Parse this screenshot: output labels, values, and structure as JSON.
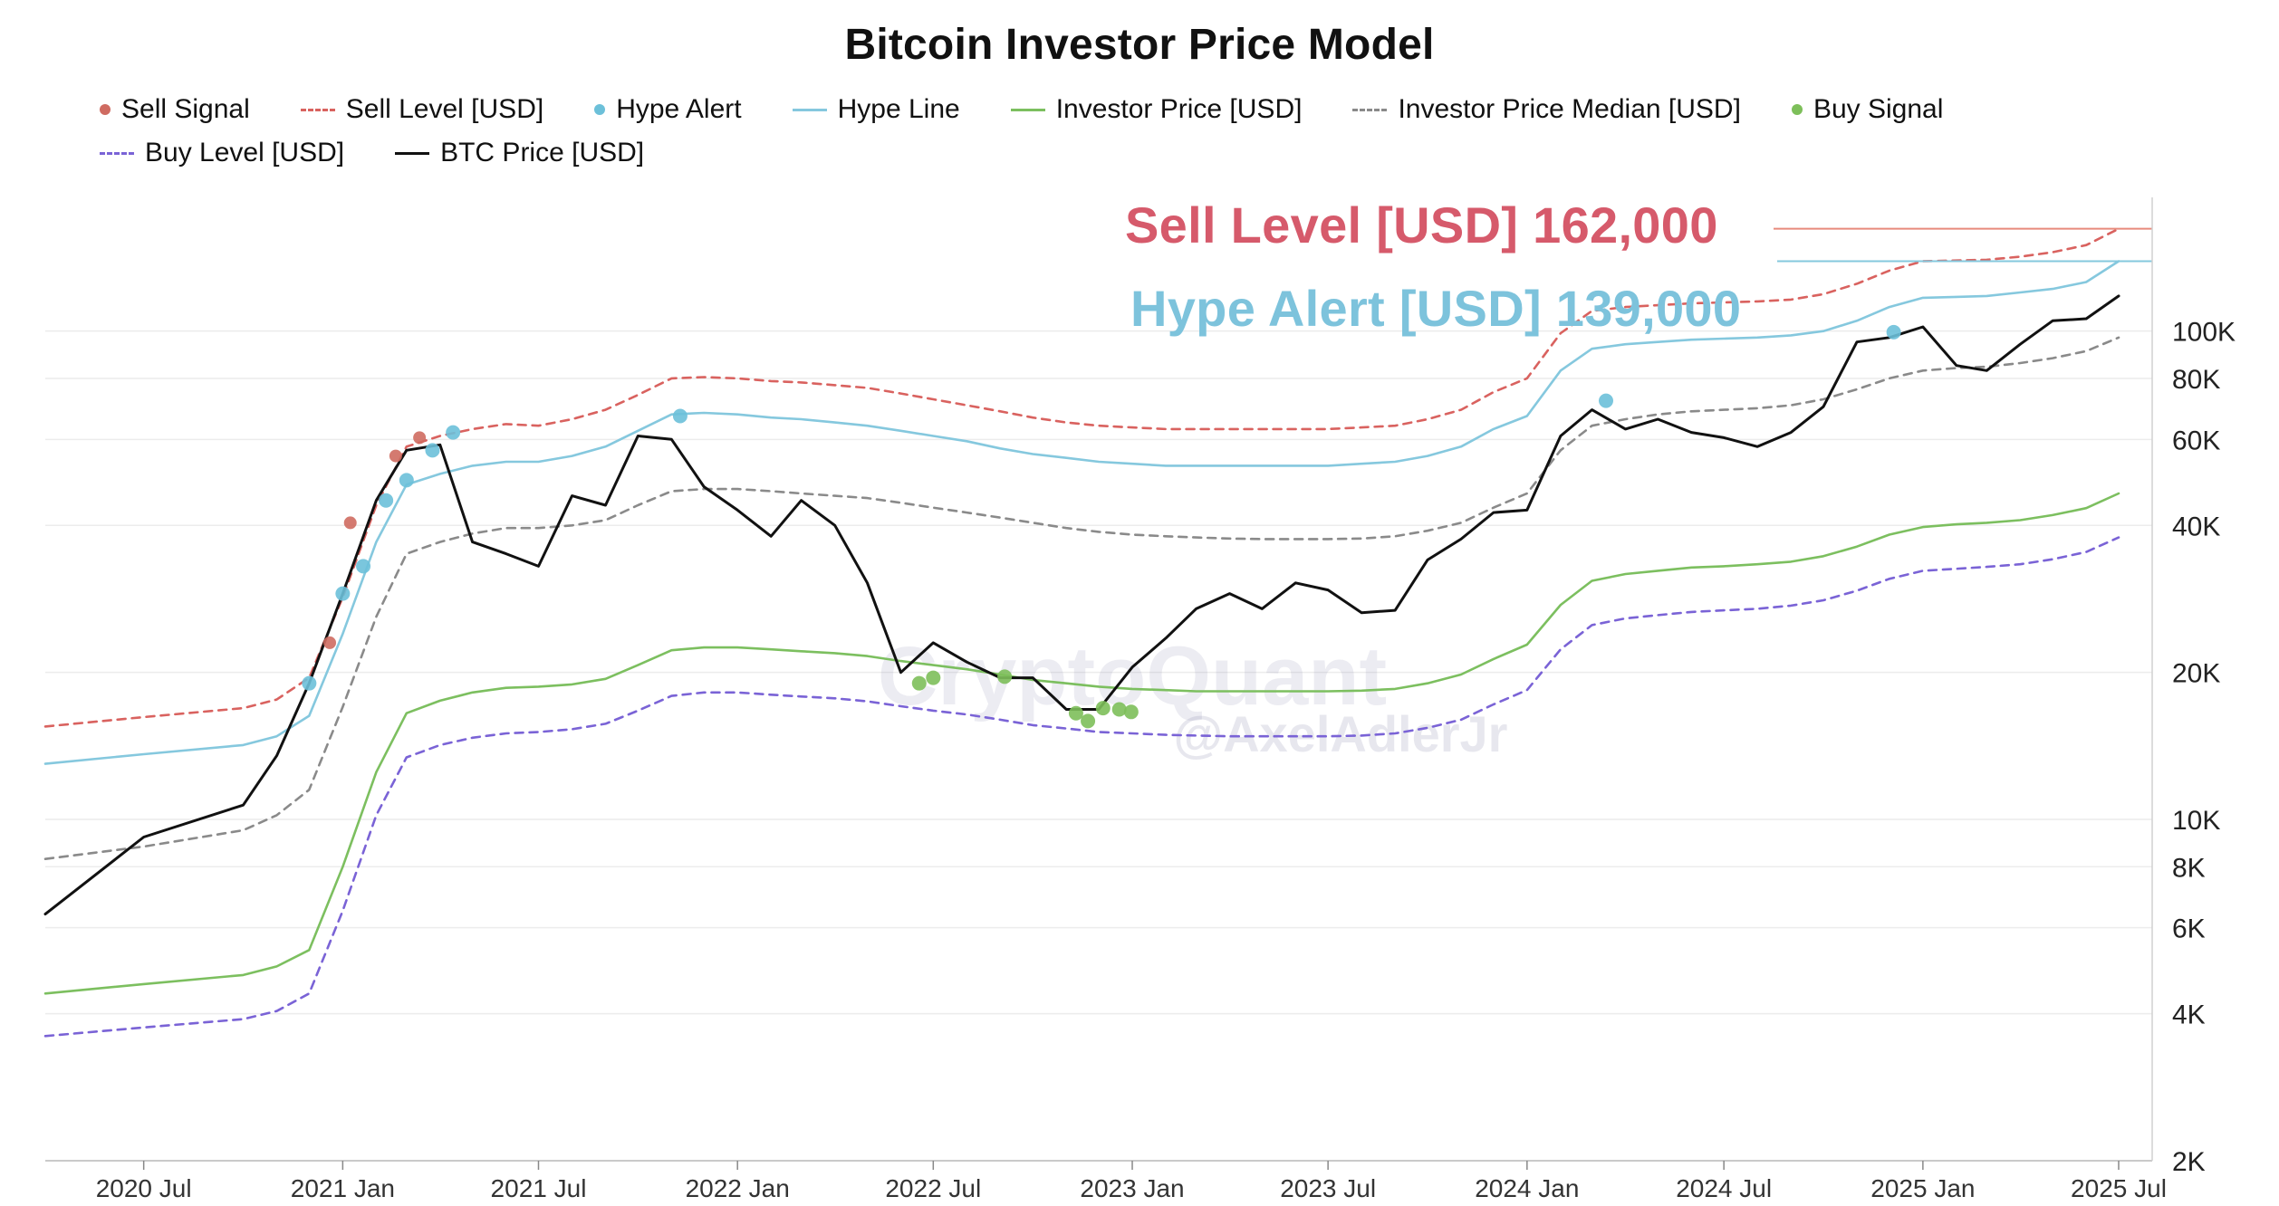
{
  "title": "Bitcoin Investor Price Model",
  "legend": [
    {
      "label": "Sell Signal",
      "kind": "dot",
      "color": "#cf6b61"
    },
    {
      "label": "Sell Level [USD]",
      "kind": "dash",
      "color": "#d9625f"
    },
    {
      "label": "Hype Alert",
      "kind": "dot",
      "color": "#6cc0d9"
    },
    {
      "label": "Hype Line",
      "kind": "line",
      "color": "#85c8de"
    },
    {
      "label": "Investor Price [USD]",
      "kind": "line",
      "color": "#7cbf5f"
    },
    {
      "label": "Investor Price Median [USD]",
      "kind": "dash",
      "color": "#8a8a8a"
    },
    {
      "label": "Buy Signal",
      "kind": "dot",
      "color": "#7dbf5a"
    },
    {
      "label": "Buy Level [USD]",
      "kind": "dash",
      "color": "#7a63d6"
    },
    {
      "label": "BTC Price [USD]",
      "kind": "line",
      "color": "#111111"
    }
  ],
  "annotations": {
    "sell_level": "Sell Level [USD] 162,000",
    "hype_alert": "Hype Alert [USD] 139,000"
  },
  "watermark": {
    "brand": "CryptoQuant",
    "author": "@AxelAdlerJr"
  },
  "chart_data": {
    "type": "line",
    "title": "Bitcoin Investor Price Model",
    "xlabel": "",
    "ylabel": "",
    "yscale": "log",
    "ylim": [
      2000,
      180000
    ],
    "xlim": [
      "2020-04-01",
      "2025-08-01"
    ],
    "x_ticks": [
      {
        "label": "2020 Jul",
        "date": "2020-07-01"
      },
      {
        "label": "2021 Jan",
        "date": "2021-01-01"
      },
      {
        "label": "2021 Jul",
        "date": "2021-07-01"
      },
      {
        "label": "2022 Jan",
        "date": "2022-01-01"
      },
      {
        "label": "2022 Jul",
        "date": "2022-07-01"
      },
      {
        "label": "2023 Jan",
        "date": "2023-01-01"
      },
      {
        "label": "2023 Jul",
        "date": "2023-07-01"
      },
      {
        "label": "2024 Jan",
        "date": "2024-01-01"
      },
      {
        "label": "2024 Jul",
        "date": "2024-07-01"
      },
      {
        "label": "2025 Jan",
        "date": "2025-01-01"
      },
      {
        "label": "2025 Jul",
        "date": "2025-07-01"
      }
    ],
    "y_ticks": [
      {
        "label": "2K",
        "value": 2000
      },
      {
        "label": "4K",
        "value": 4000
      },
      {
        "label": "6K",
        "value": 6000
      },
      {
        "label": "8K",
        "value": 8000
      },
      {
        "label": "10K",
        "value": 10000
      },
      {
        "label": "20K",
        "value": 20000
      },
      {
        "label": "40K",
        "value": 40000
      },
      {
        "label": "60K",
        "value": 60000
      },
      {
        "label": "80K",
        "value": 80000
      },
      {
        "label": "100K",
        "value": 100000
      }
    ],
    "grid": true,
    "legend_position": "top",
    "dates": [
      "2020-04-01",
      "2020-07-01",
      "2020-10-01",
      "2020-11-01",
      "2020-12-01",
      "2021-01-01",
      "2021-02-01",
      "2021-03-01",
      "2021-04-01",
      "2021-05-01",
      "2021-06-01",
      "2021-07-01",
      "2021-08-01",
      "2021-09-01",
      "2021-10-01",
      "2021-11-01",
      "2021-12-01",
      "2022-01-01",
      "2022-02-01",
      "2022-03-01",
      "2022-04-01",
      "2022-05-01",
      "2022-06-01",
      "2022-07-01",
      "2022-08-01",
      "2022-09-01",
      "2022-10-01",
      "2022-11-01",
      "2022-12-01",
      "2023-01-01",
      "2023-02-01",
      "2023-03-01",
      "2023-04-01",
      "2023-05-01",
      "2023-06-01",
      "2023-07-01",
      "2023-08-01",
      "2023-09-01",
      "2023-10-01",
      "2023-11-01",
      "2023-12-01",
      "2024-01-01",
      "2024-02-01",
      "2024-03-01",
      "2024-04-01",
      "2024-05-01",
      "2024-06-01",
      "2024-07-01",
      "2024-08-01",
      "2024-09-01",
      "2024-10-01",
      "2024-11-01",
      "2024-12-01",
      "2025-01-01",
      "2025-02-01",
      "2025-03-01",
      "2025-04-01",
      "2025-05-01",
      "2025-06-01",
      "2025-07-01"
    ],
    "series": [
      {
        "name": "BTC Price [USD]",
        "color": "#111111",
        "style": "line",
        "values": [
          6400,
          9200,
          10700,
          13500,
          19000,
          29000,
          45000,
          57000,
          58500,
          37000,
          35000,
          33000,
          46000,
          44000,
          61000,
          60000,
          48000,
          43000,
          38000,
          45000,
          40000,
          30500,
          20000,
          23000,
          21000,
          19500,
          19500,
          16800,
          16800,
          20500,
          23500,
          27000,
          29000,
          27000,
          30500,
          29500,
          26500,
          26800,
          34000,
          37500,
          42500,
          43000,
          61000,
          69000,
          63000,
          66000,
          62000,
          60500,
          58000,
          62000,
          70000,
          95000,
          97000,
          102000,
          85000,
          83000,
          94000,
          105000,
          106000,
          118000
        ]
      },
      {
        "name": "Sell Level [USD]",
        "color": "#d9625f",
        "style": "dash",
        "values": [
          15500,
          16200,
          16900,
          17600,
          19500,
          28500,
          44000,
          58000,
          61000,
          63000,
          64500,
          64000,
          66000,
          69000,
          74000,
          80000,
          80500,
          80000,
          79000,
          78500,
          77500,
          76500,
          74500,
          72500,
          70500,
          68500,
          66500,
          65000,
          64000,
          63500,
          63000,
          63000,
          63000,
          63000,
          63000,
          63000,
          63500,
          64000,
          66000,
          69000,
          75000,
          80000,
          99000,
          110000,
          112000,
          113000,
          114000,
          114500,
          115000,
          116000,
          119000,
          125000,
          133000,
          139000,
          139500,
          140000,
          142000,
          145000,
          150000,
          162000
        ]
      },
      {
        "name": "Hype Line",
        "color": "#85c8de",
        "style": "line",
        "values": [
          13000,
          13600,
          14200,
          14800,
          16300,
          24000,
          37000,
          48500,
          51000,
          53000,
          54000,
          54000,
          55500,
          58000,
          62500,
          67500,
          68000,
          67500,
          66500,
          66000,
          65000,
          64000,
          62500,
          61000,
          59500,
          57500,
          56000,
          55000,
          54000,
          53500,
          53000,
          53000,
          53000,
          53000,
          53000,
          53000,
          53500,
          54000,
          55500,
          58000,
          63000,
          67000,
          83000,
          92000,
          94000,
          95000,
          96000,
          96500,
          97000,
          98000,
          100000,
          105000,
          112000,
          117000,
          117500,
          118000,
          120000,
          122000,
          126000,
          139000
        ]
      },
      {
        "name": "Investor Price Median [USD]",
        "color": "#8a8a8a",
        "style": "dash",
        "values": [
          8300,
          8800,
          9500,
          10200,
          11500,
          17000,
          26000,
          35000,
          37000,
          38500,
          39500,
          39500,
          40000,
          41000,
          44000,
          47000,
          47500,
          47500,
          47000,
          46500,
          46000,
          45500,
          44500,
          43500,
          42500,
          41500,
          40500,
          39500,
          38800,
          38300,
          38000,
          37800,
          37600,
          37500,
          37500,
          37500,
          37600,
          38000,
          39000,
          40500,
          43500,
          46500,
          57000,
          64000,
          66000,
          67500,
          68500,
          69000,
          69500,
          70500,
          72500,
          76000,
          80000,
          83000,
          84000,
          84500,
          86000,
          88000,
          91000,
          97000
        ]
      },
      {
        "name": "Investor Price [USD]",
        "color": "#7cbf5f",
        "style": "line",
        "values": [
          4400,
          4600,
          4800,
          5000,
          5400,
          8000,
          12500,
          16500,
          17500,
          18200,
          18600,
          18700,
          18900,
          19400,
          20700,
          22200,
          22500,
          22500,
          22300,
          22100,
          21900,
          21600,
          21100,
          20700,
          20300,
          19800,
          19300,
          19000,
          18700,
          18500,
          18400,
          18300,
          18300,
          18300,
          18300,
          18300,
          18350,
          18500,
          19000,
          19800,
          21300,
          22800,
          27500,
          30800,
          31800,
          32300,
          32800,
          33000,
          33300,
          33700,
          34600,
          36200,
          38300,
          39700,
          40200,
          40500,
          41000,
          42000,
          43400,
          46500
        ]
      },
      {
        "name": "Buy Level [USD]",
        "color": "#7a63d6",
        "style": "dash",
        "values": [
          3600,
          3750,
          3900,
          4050,
          4400,
          6500,
          10200,
          13400,
          14200,
          14700,
          15000,
          15100,
          15300,
          15700,
          16700,
          17900,
          18200,
          18200,
          18000,
          17850,
          17700,
          17450,
          17050,
          16700,
          16400,
          16000,
          15600,
          15350,
          15100,
          15000,
          14900,
          14850,
          14800,
          14800,
          14800,
          14800,
          14850,
          15000,
          15400,
          16000,
          17200,
          18400,
          22300,
          25000,
          25800,
          26200,
          26600,
          26800,
          27000,
          27400,
          28100,
          29400,
          31100,
          32300,
          32600,
          32900,
          33300,
          34100,
          35300,
          37800
        ]
      }
    ],
    "signals": {
      "sell_signal": {
        "name": "Sell Signal",
        "color": "#cf6b61",
        "points": [
          [
            "2020-12-20",
            23000
          ],
          [
            "2021-01-08",
            40500
          ],
          [
            "2021-02-19",
            55500
          ],
          [
            "2021-03-13",
            60500
          ]
        ]
      },
      "hype_alert": {
        "name": "Hype Alert",
        "color": "#6cc0d9",
        "points": [
          [
            "2020-12-01",
            19000
          ],
          [
            "2021-01-01",
            29000
          ],
          [
            "2021-01-20",
            33000
          ],
          [
            "2021-02-10",
            45000
          ],
          [
            "2021-03-01",
            49500
          ],
          [
            "2021-03-25",
            57000
          ],
          [
            "2021-04-13",
            62000
          ],
          [
            "2021-11-09",
            67000
          ],
          [
            "2024-03-14",
            72000
          ],
          [
            "2024-12-05",
            99500
          ]
        ]
      },
      "buy_signal": {
        "name": "Buy Signal",
        "color": "#7dbf5a",
        "points": [
          [
            "2022-06-18",
            19000
          ],
          [
            "2022-07-01",
            19500
          ],
          [
            "2022-09-05",
            19600
          ],
          [
            "2022-11-10",
            16500
          ],
          [
            "2022-11-21",
            15900
          ],
          [
            "2022-12-05",
            16900
          ],
          [
            "2022-12-20",
            16800
          ],
          [
            "2022-12-31",
            16600
          ]
        ]
      }
    }
  }
}
